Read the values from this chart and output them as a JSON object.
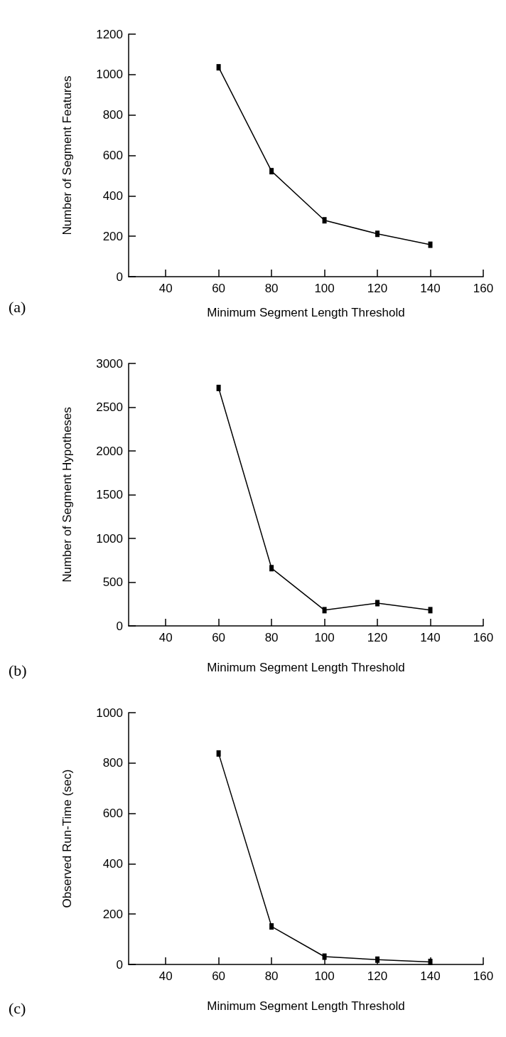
{
  "chart_data": [
    {
      "type": "line",
      "xlabel": "Minimum Segment Length Threshold",
      "ylabel": "Number of Segment Features",
      "annotations": [
        "(a)"
      ],
      "x": [
        60,
        80,
        100,
        120,
        140
      ],
      "values": [
        1036,
        522,
        279,
        212,
        158
      ],
      "color": "#000000",
      "xlim": [
        26,
        160
      ],
      "xticks": [
        40,
        60,
        80,
        100,
        120,
        140,
        160
      ],
      "ylim": [
        0,
        1200
      ],
      "yticks": [
        0,
        200,
        400,
        600,
        800,
        1000,
        1200
      ],
      "grid": false,
      "marker": "square",
      "line_style": "solid"
    },
    {
      "type": "line",
      "xlabel": "Minimum Segment Length Threshold",
      "ylabel": "Number of Segment Hypotheses",
      "annotations": [
        "(b)"
      ],
      "x": [
        60,
        80,
        100,
        120,
        140
      ],
      "values": [
        2720,
        660,
        180,
        260,
        180
      ],
      "color": "#000000",
      "xlim": [
        26,
        160
      ],
      "xticks": [
        40,
        60,
        80,
        100,
        120,
        140,
        160
      ],
      "ylim": [
        0,
        3000
      ],
      "yticks": [
        0,
        500,
        1000,
        1500,
        2000,
        2500,
        3000
      ],
      "grid": false,
      "marker": "square",
      "line_style": "solid"
    },
    {
      "type": "line",
      "xlabel": "Minimum Segment Length Threshold",
      "ylabel": "Observed Run-Time (sec)",
      "annotations": [
        "(c)"
      ],
      "x": [
        60,
        80,
        100,
        120,
        140
      ],
      "values": [
        838,
        151,
        31,
        19,
        10
      ],
      "color": "#000000",
      "xlim": [
        26,
        160
      ],
      "xticks": [
        40,
        60,
        80,
        100,
        120,
        140,
        160
      ],
      "ylim": [
        0,
        1000
      ],
      "yticks": [
        0,
        200,
        400,
        600,
        800,
        1000
      ],
      "grid": false,
      "marker": "square",
      "line_style": "solid"
    }
  ]
}
